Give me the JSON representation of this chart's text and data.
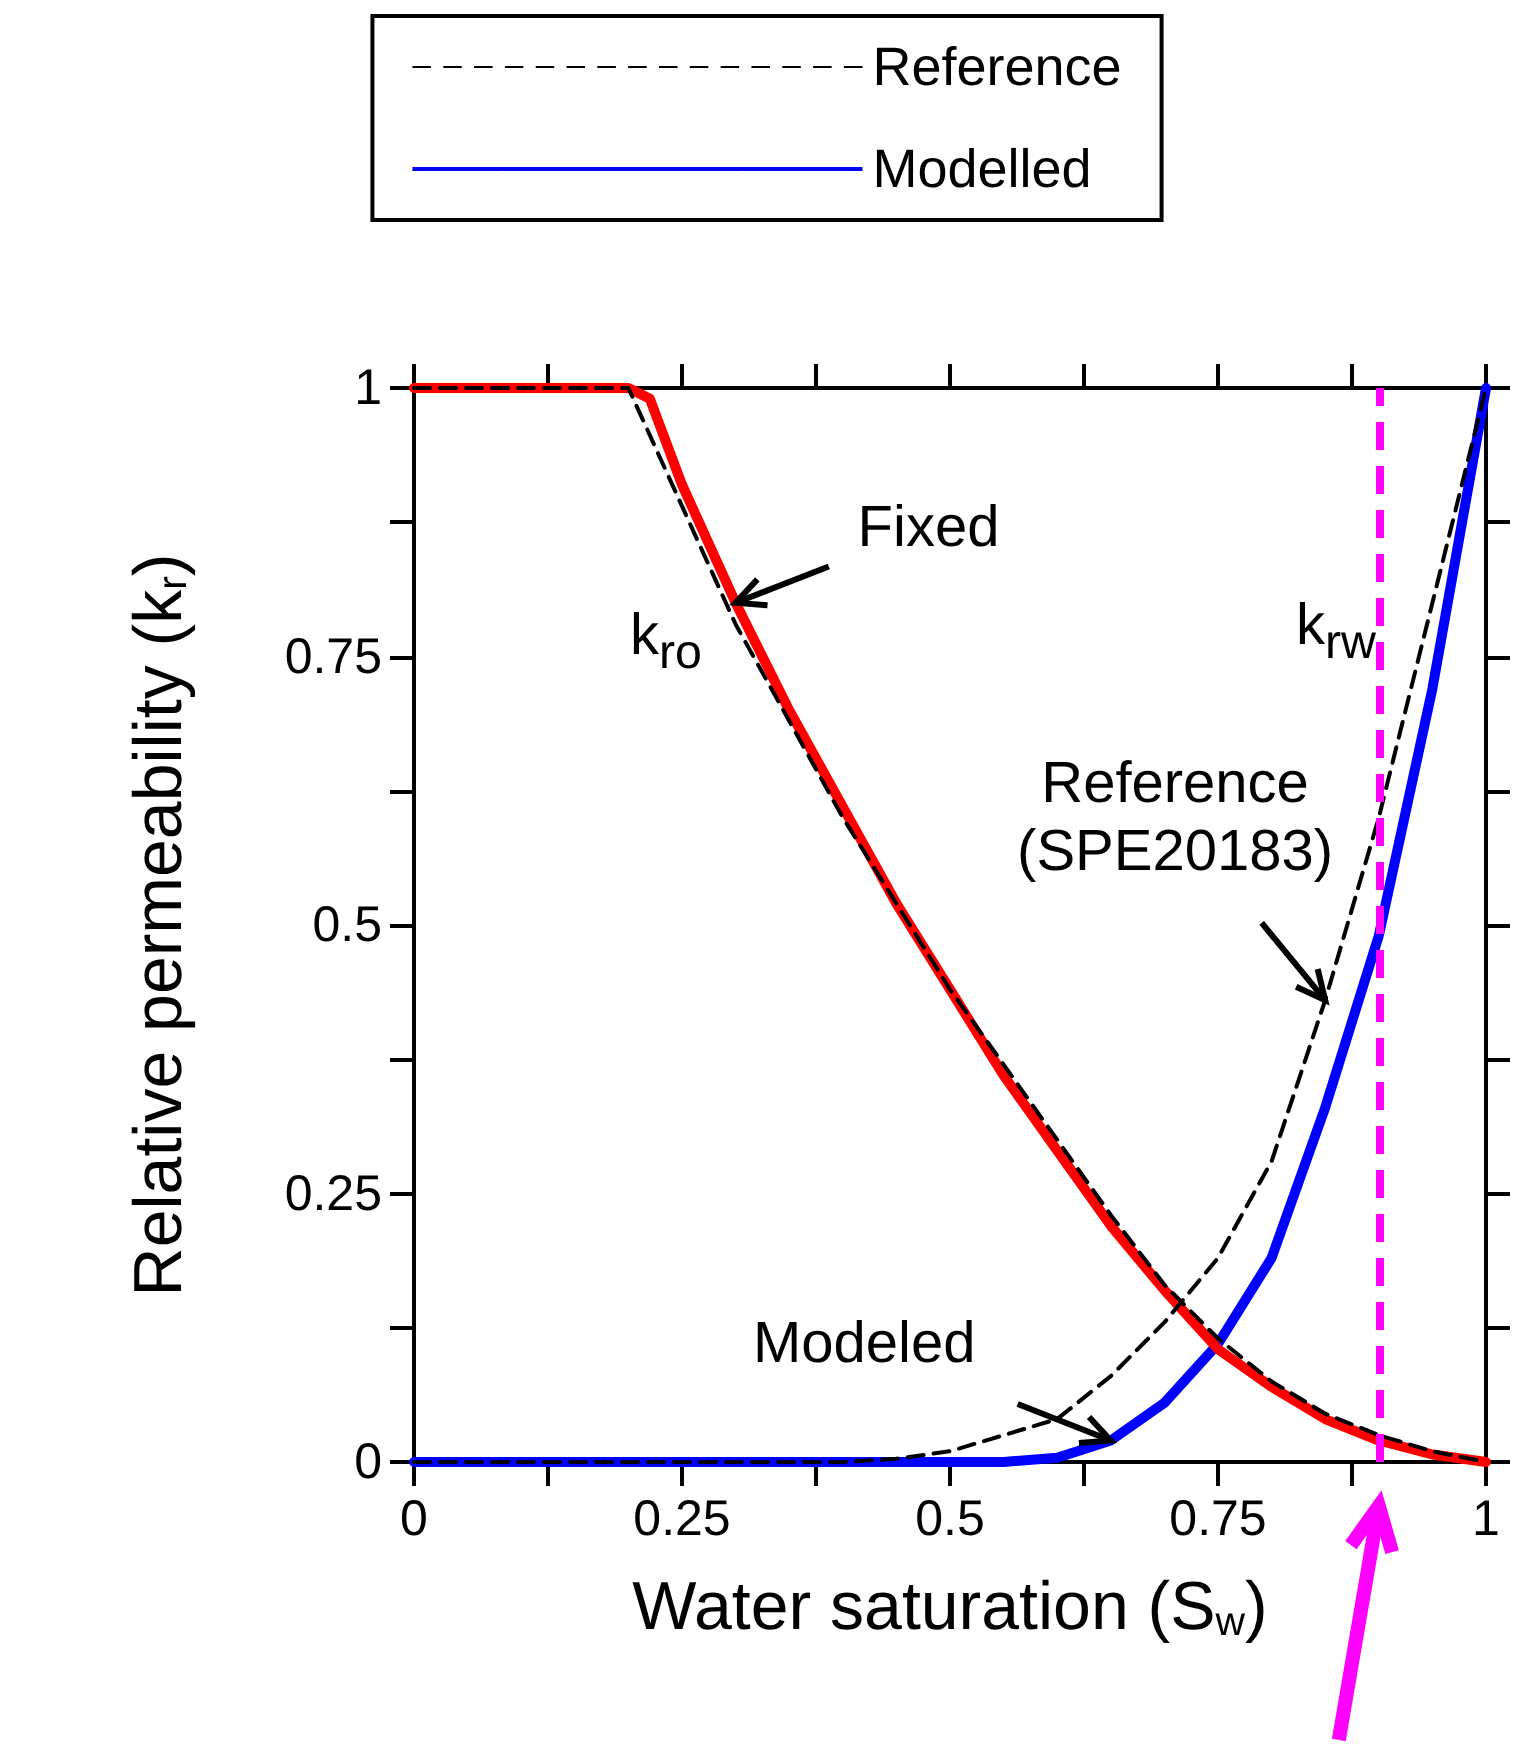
{
  "chart_data": {
    "type": "line",
    "xlabel": "Water saturation (S$_{w}$)",
    "ylabel": "Relative permeability (k$_{r}$)",
    "series": [
      {
        "name": "Reference",
        "color": "#000000",
        "line_style": "dashed",
        "x": [
          0,
          0.2,
          0.25,
          0.3,
          0.35,
          0.4,
          0.45,
          0.5,
          0.55,
          0.6,
          0.65,
          0.7,
          0.75,
          0.8,
          0.85,
          0.9,
          0.95,
          1
        ],
        "values": [
          1,
          1,
          0.89,
          0.78,
          0.69,
          0.6,
          0.52,
          0.44,
          0.37,
          0.3,
          0.23,
          0.165,
          0.115,
          0.075,
          0.045,
          0.025,
          0.01,
          0
        ]
      },
      {
        "name": "Modelled",
        "color": "#0000ff",
        "line_style": "solid",
        "x": [
          0,
          0.55,
          0.6,
          0.65,
          0.7,
          0.75,
          0.8,
          0.85,
          0.9,
          0.95,
          1
        ],
        "values": [
          0,
          0,
          0.004,
          0.02,
          0.055,
          0.11,
          0.19,
          0.33,
          0.49,
          0.72,
          1
        ]
      },
      {
        "color": "#000000",
        "line_style": "dashed",
        "x": [
          0,
          0.4,
          0.45,
          0.5,
          0.55,
          0.6,
          0.65,
          0.7,
          0.75,
          0.8,
          0.85,
          0.9,
          0.95,
          1
        ],
        "values": [
          0,
          0,
          0.003,
          0.01,
          0.025,
          0.04,
          0.08,
          0.13,
          0.19,
          0.28,
          0.43,
          0.6,
          0.8,
          1
        ]
      },
      {
        "color": "#ff0000",
        "line_style": "solid",
        "x": [
          0,
          0.2,
          0.22,
          0.25,
          0.3,
          0.35,
          0.4,
          0.45,
          0.5,
          0.55,
          0.6,
          0.65,
          0.7,
          0.75,
          0.8,
          0.85,
          0.9,
          0.95,
          1
        ],
        "values": [
          1,
          1,
          0.99,
          0.91,
          0.8,
          0.7,
          0.61,
          0.52,
          0.44,
          0.36,
          0.29,
          0.22,
          0.16,
          0.105,
          0.07,
          0.04,
          0.02,
          0.007,
          0
        ]
      }
    ],
    "xlim": [
      0,
      1
    ],
    "ylim": [
      0,
      1
    ],
    "xticks": [
      0,
      0.25,
      0.5,
      0.75,
      1
    ],
    "yticks": [
      0,
      0.25,
      0.5,
      0.75,
      1
    ],
    "grid": false,
    "legend": "top",
    "marker": "none",
    "ref_lines": [
      {
        "axis": "x",
        "value": 0.9,
        "color": "#ff00ff",
        "line_style": "dashed"
      }
    ],
    "annotations": [
      "k$_{ro}$",
      "k$_{rw}$",
      {
        "text": "Fixed",
        "x": 0.3,
        "y": 0.8
      },
      {
        "text": "Reference (SPE20183)",
        "x": 0.85,
        "y": 0.43
      },
      {
        "text": "Modeled",
        "x": 0.65,
        "y": 0.02
      }
    ]
  }
}
